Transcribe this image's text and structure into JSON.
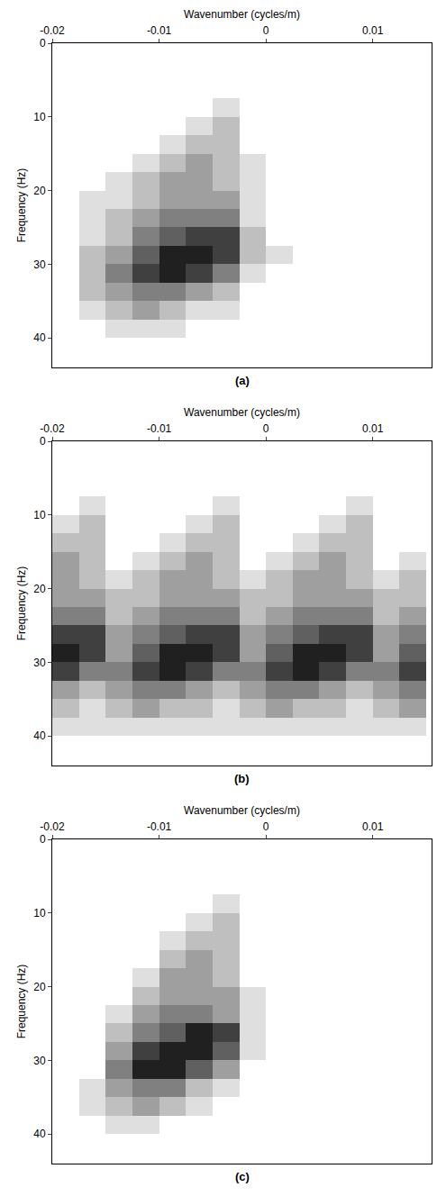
{
  "chart_data": [
    {
      "type": "heatmap",
      "title": "(a)",
      "x_label": "Wavenumber (cycles/m)",
      "y_label": "Frequency (Hz)",
      "xlim": [
        -0.02,
        0.0155
      ],
      "ylim": [
        0,
        44
      ],
      "xticks": [
        -0.02,
        -0.01,
        0,
        0.01
      ],
      "yticks": [
        0,
        10,
        20,
        30,
        40
      ],
      "zlim": [
        0,
        8
      ],
      "grid": false,
      "x": [
        -0.01875,
        -0.01625,
        -0.01375,
        -0.01125,
        -0.00875,
        -0.00625,
        -0.00375,
        -0.00125,
        0.00125,
        0.00375,
        0.00625,
        0.00875,
        0.01125,
        0.01375
      ],
      "y": [
        1.25,
        3.75,
        6.25,
        8.75,
        11.25,
        13.75,
        16.25,
        18.75,
        21.25,
        23.75,
        26.25,
        28.75,
        31.25,
        33.75,
        36.25,
        38.75,
        41.25,
        43.75
      ],
      "z": [
        [
          0,
          0,
          0,
          0,
          0,
          0,
          0,
          0,
          0,
          0,
          0,
          0,
          0,
          0
        ],
        [
          0,
          0,
          0,
          0,
          0,
          0,
          0,
          0,
          0,
          0,
          0,
          0,
          0,
          0
        ],
        [
          0,
          0,
          0,
          0,
          0,
          0,
          0,
          0,
          0,
          0,
          0,
          0,
          0,
          0
        ],
        [
          0,
          0,
          0,
          0,
          0,
          0,
          1,
          0,
          0,
          0,
          0,
          0,
          0,
          0
        ],
        [
          0,
          0,
          0,
          0,
          0,
          1,
          2,
          0,
          0,
          0,
          0,
          0,
          0,
          0
        ],
        [
          0,
          0,
          0,
          0,
          1,
          2,
          2,
          0,
          0,
          0,
          0,
          0,
          0,
          0
        ],
        [
          0,
          0,
          0,
          1,
          2,
          3,
          2,
          1,
          0,
          0,
          0,
          0,
          0,
          0
        ],
        [
          0,
          0,
          1,
          2,
          3,
          3,
          2,
          1,
          0,
          0,
          0,
          0,
          0,
          0
        ],
        [
          0,
          1,
          1,
          2,
          3,
          3,
          3,
          1,
          0,
          0,
          0,
          0,
          0,
          0
        ],
        [
          0,
          1,
          2,
          3,
          4,
          4,
          4,
          1,
          0,
          0,
          0,
          0,
          0,
          0
        ],
        [
          0,
          1,
          2,
          4,
          5,
          6,
          6,
          2,
          0,
          0,
          0,
          0,
          0,
          0
        ],
        [
          0,
          2,
          3,
          5,
          7,
          7,
          6,
          2,
          1,
          0,
          0,
          0,
          0,
          0
        ],
        [
          0,
          2,
          4,
          6,
          7,
          6,
          4,
          1,
          0,
          0,
          0,
          0,
          0,
          0
        ],
        [
          0,
          2,
          3,
          4,
          4,
          3,
          2,
          0,
          0,
          0,
          0,
          0,
          0,
          0
        ],
        [
          0,
          1,
          2,
          3,
          2,
          1,
          1,
          0,
          0,
          0,
          0,
          0,
          0,
          0
        ],
        [
          0,
          0,
          1,
          1,
          1,
          0,
          0,
          0,
          0,
          0,
          0,
          0,
          0,
          0
        ],
        [
          0,
          0,
          0,
          0,
          0,
          0,
          0,
          0,
          0,
          0,
          0,
          0,
          0,
          0
        ],
        [
          0,
          0,
          0,
          0,
          0,
          0,
          0,
          0,
          0,
          0,
          0,
          0,
          0,
          0
        ]
      ]
    },
    {
      "type": "heatmap",
      "title": "(b)",
      "x_label": "Wavenumber (cycles/m)",
      "y_label": "Frequency (Hz)",
      "xlim": [
        -0.02,
        0.0155
      ],
      "ylim": [
        0,
        44
      ],
      "xticks": [
        -0.02,
        -0.01,
        0,
        0.01
      ],
      "yticks": [
        0,
        10,
        20,
        30,
        40
      ],
      "zlim": [
        0,
        8
      ],
      "grid": false,
      "x": [
        -0.01875,
        -0.01625,
        -0.01375,
        -0.01125,
        -0.00875,
        -0.00625,
        -0.00375,
        -0.00125,
        0.00125,
        0.00375,
        0.00625,
        0.00875,
        0.01125,
        0.01375
      ],
      "y": [
        1.25,
        3.75,
        6.25,
        8.75,
        11.25,
        13.75,
        16.25,
        18.75,
        21.25,
        23.75,
        26.25,
        28.75,
        31.25,
        33.75,
        36.25,
        38.75,
        41.25,
        43.75
      ],
      "z": [
        [
          0,
          0,
          0,
          0,
          0,
          0,
          0,
          0,
          0,
          0,
          0,
          0,
          0,
          0
        ],
        [
          0,
          0,
          0,
          0,
          0,
          0,
          0,
          0,
          0,
          0,
          0,
          0,
          0,
          0
        ],
        [
          0,
          0,
          0,
          0,
          0,
          0,
          0,
          0,
          0,
          0,
          0,
          0,
          0,
          0
        ],
        [
          0,
          1,
          0,
          0,
          0,
          0,
          1,
          0,
          0,
          0,
          0,
          1,
          0,
          0
        ],
        [
          1,
          2,
          0,
          0,
          0,
          1,
          2,
          0,
          0,
          0,
          1,
          2,
          0,
          0
        ],
        [
          2,
          2,
          0,
          0,
          1,
          2,
          2,
          0,
          0,
          1,
          2,
          2,
          0,
          0
        ],
        [
          3,
          2,
          0,
          1,
          2,
          3,
          2,
          0,
          1,
          2,
          3,
          2,
          0,
          1
        ],
        [
          3,
          2,
          1,
          2,
          3,
          3,
          2,
          1,
          2,
          3,
          3,
          2,
          1,
          2
        ],
        [
          3,
          3,
          2,
          2,
          3,
          3,
          3,
          2,
          2,
          3,
          3,
          3,
          2,
          2
        ],
        [
          4,
          4,
          2,
          3,
          4,
          4,
          4,
          2,
          3,
          4,
          4,
          4,
          2,
          3
        ],
        [
          6,
          6,
          3,
          4,
          5,
          6,
          6,
          3,
          4,
          5,
          6,
          6,
          3,
          4
        ],
        [
          7,
          6,
          3,
          5,
          7,
          7,
          6,
          3,
          5,
          7,
          7,
          6,
          3,
          5
        ],
        [
          6,
          4,
          4,
          6,
          7,
          6,
          4,
          4,
          6,
          7,
          6,
          4,
          4,
          6
        ],
        [
          3,
          2,
          3,
          4,
          4,
          3,
          2,
          3,
          4,
          4,
          3,
          2,
          3,
          4
        ],
        [
          2,
          1,
          2,
          3,
          2,
          2,
          1,
          2,
          3,
          2,
          2,
          1,
          2,
          3
        ],
        [
          1,
          1,
          1,
          1,
          1,
          1,
          1,
          1,
          1,
          1,
          1,
          1,
          1,
          1
        ],
        [
          0,
          0,
          0,
          0,
          0,
          0,
          0,
          0,
          0,
          0,
          0,
          0,
          0,
          0
        ],
        [
          0,
          0,
          0,
          0,
          0,
          0,
          0,
          0,
          0,
          0,
          0,
          0,
          0,
          0
        ]
      ]
    },
    {
      "type": "heatmap",
      "title": "(c)",
      "x_label": "Wavenumber (cycles/m)",
      "y_label": "Frequency (Hz)",
      "xlim": [
        -0.02,
        0.0155
      ],
      "ylim": [
        0,
        44
      ],
      "xticks": [
        -0.02,
        -0.01,
        0,
        0.01
      ],
      "yticks": [
        0,
        10,
        20,
        30,
        40
      ],
      "zlim": [
        0,
        8
      ],
      "grid": false,
      "x": [
        -0.01875,
        -0.01625,
        -0.01375,
        -0.01125,
        -0.00875,
        -0.00625,
        -0.00375,
        -0.00125,
        0.00125,
        0.00375,
        0.00625,
        0.00875,
        0.01125,
        0.01375
      ],
      "y": [
        1.25,
        3.75,
        6.25,
        8.75,
        11.25,
        13.75,
        16.25,
        18.75,
        21.25,
        23.75,
        26.25,
        28.75,
        31.25,
        33.75,
        36.25,
        38.75,
        41.25,
        43.75
      ],
      "z": [
        [
          0,
          0,
          0,
          0,
          0,
          0,
          0,
          0,
          0,
          0,
          0,
          0,
          0,
          0
        ],
        [
          0,
          0,
          0,
          0,
          0,
          0,
          0,
          0,
          0,
          0,
          0,
          0,
          0,
          0
        ],
        [
          0,
          0,
          0,
          0,
          0,
          0,
          0,
          0,
          0,
          0,
          0,
          0,
          0,
          0
        ],
        [
          0,
          0,
          0,
          0,
          0,
          0,
          1,
          0,
          0,
          0,
          0,
          0,
          0,
          0
        ],
        [
          0,
          0,
          0,
          0,
          0,
          1,
          2,
          0,
          0,
          0,
          0,
          0,
          0,
          0
        ],
        [
          0,
          0,
          0,
          0,
          1,
          2,
          2,
          0,
          0,
          0,
          0,
          0,
          0,
          0
        ],
        [
          0,
          0,
          0,
          0,
          2,
          3,
          2,
          0,
          0,
          0,
          0,
          0,
          0,
          0
        ],
        [
          0,
          0,
          0,
          1,
          3,
          3,
          2,
          0,
          0,
          0,
          0,
          0,
          0,
          0
        ],
        [
          0,
          0,
          0,
          2,
          3,
          3,
          3,
          1,
          0,
          0,
          0,
          0,
          0,
          0
        ],
        [
          0,
          0,
          1,
          3,
          4,
          4,
          3,
          1,
          0,
          0,
          0,
          0,
          0,
          0
        ],
        [
          0,
          0,
          2,
          4,
          5,
          7,
          6,
          1,
          0,
          0,
          0,
          0,
          0,
          0
        ],
        [
          0,
          0,
          3,
          6,
          7,
          7,
          5,
          1,
          0,
          0,
          0,
          0,
          0,
          0
        ],
        [
          0,
          0,
          4,
          7,
          7,
          5,
          3,
          0,
          0,
          0,
          0,
          0,
          0,
          0
        ],
        [
          0,
          1,
          3,
          4,
          4,
          2,
          1,
          0,
          0,
          0,
          0,
          0,
          0,
          0
        ],
        [
          0,
          1,
          2,
          3,
          2,
          1,
          0,
          0,
          0,
          0,
          0,
          0,
          0,
          0
        ],
        [
          0,
          0,
          1,
          1,
          0,
          0,
          0,
          0,
          0,
          0,
          0,
          0,
          0,
          0
        ],
        [
          0,
          0,
          0,
          0,
          0,
          0,
          0,
          0,
          0,
          0,
          0,
          0,
          0,
          0
        ],
        [
          0,
          0,
          0,
          0,
          0,
          0,
          0,
          0,
          0,
          0,
          0,
          0,
          0,
          0
        ]
      ]
    }
  ]
}
